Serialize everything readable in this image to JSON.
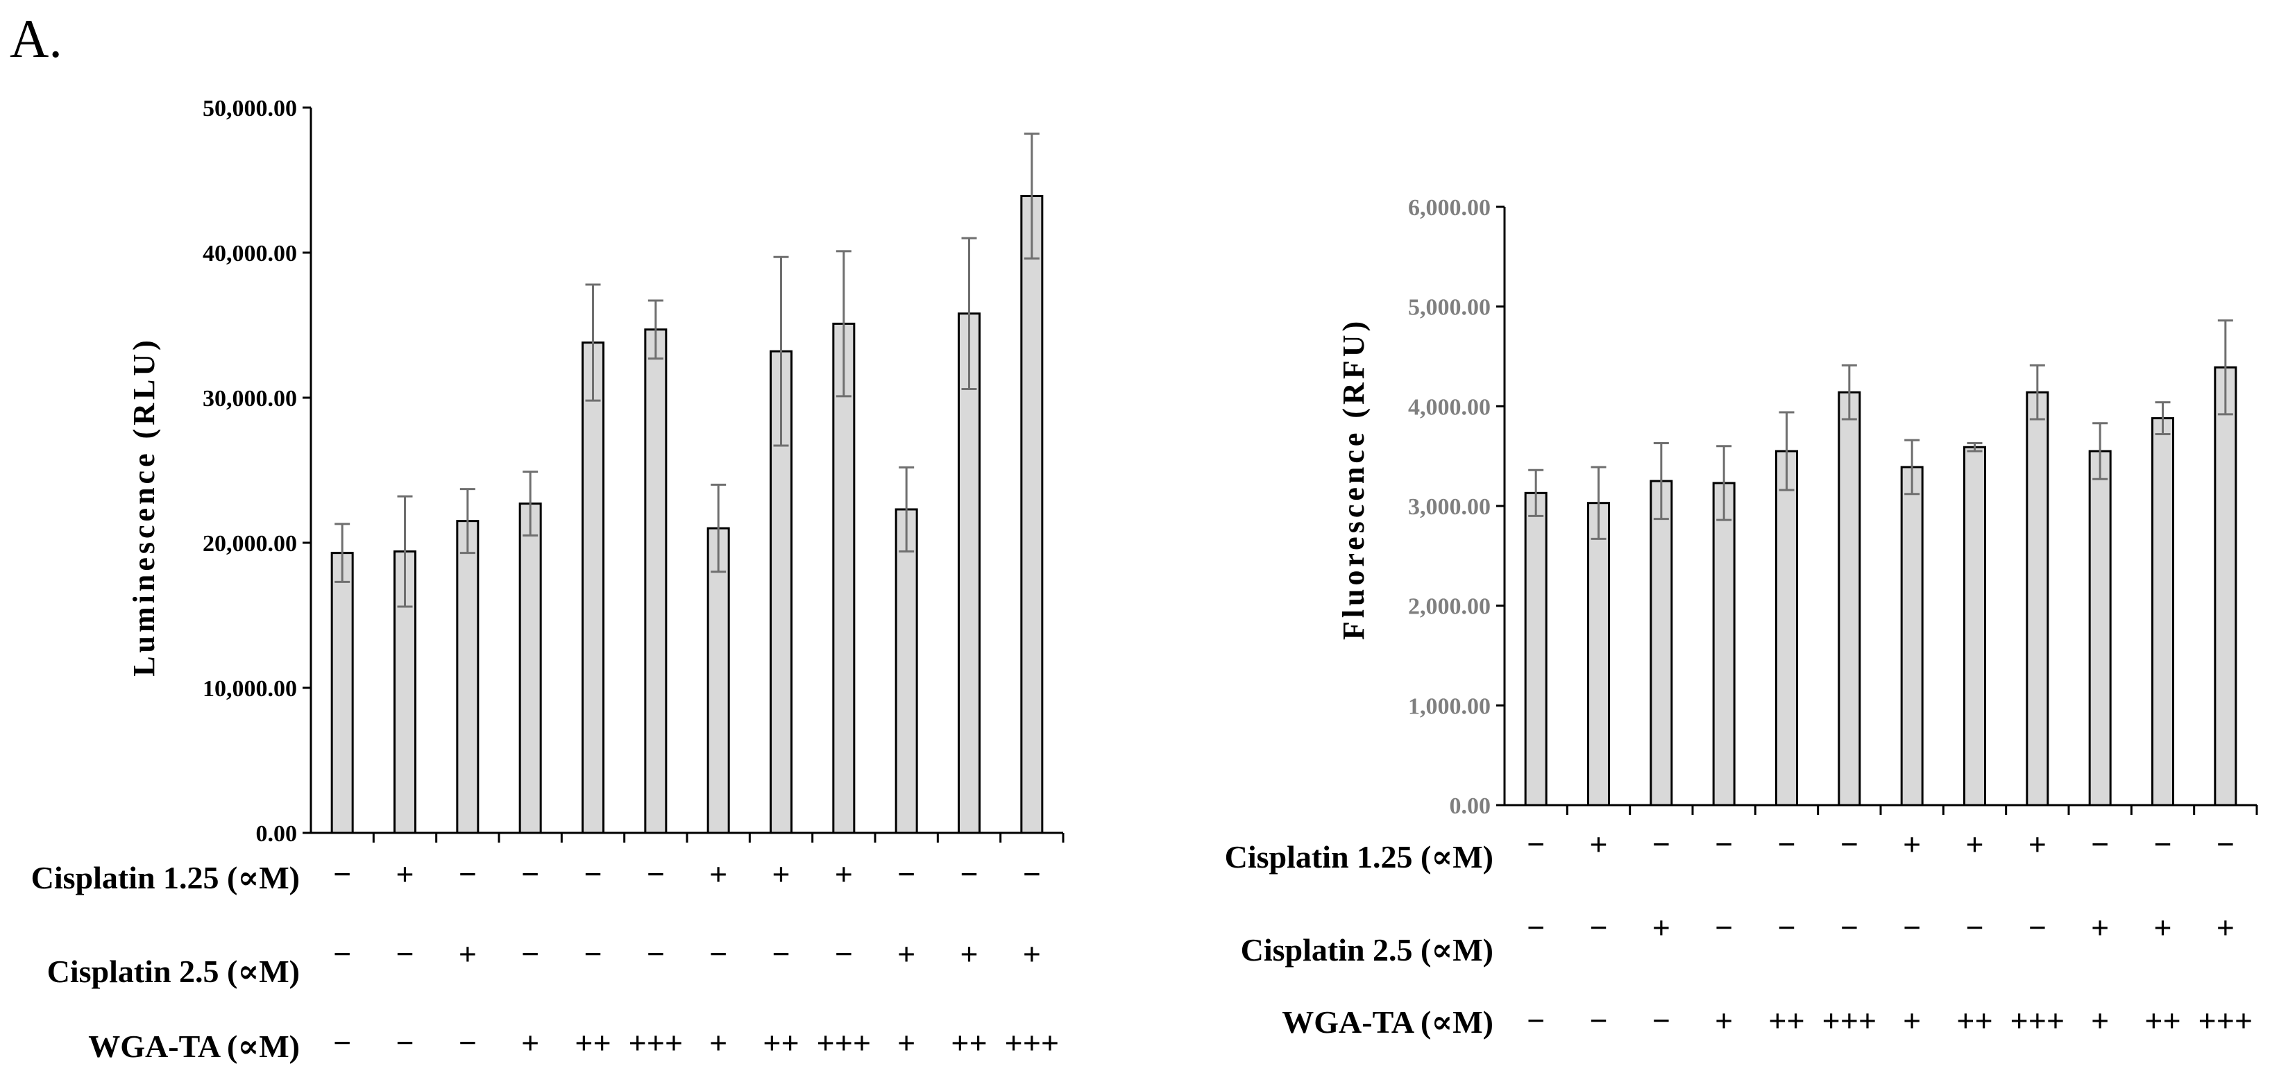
{
  "panel_label": "A.",
  "chart_data": [
    {
      "type": "bar",
      "ylabel": "Luminescence (RLU)",
      "ylim": [
        0,
        50000
      ],
      "yticks": [
        "0.00",
        "10,000.00",
        "20,000.00",
        "30,000.00",
        "40,000.00",
        "50,000.00"
      ],
      "values": [
        19300,
        19400,
        21500,
        22700,
        33800,
        34700,
        21000,
        33200,
        35100,
        22300,
        35800,
        43900
      ],
      "errors": [
        2000,
        3800,
        2200,
        2200,
        4000,
        2000,
        3000,
        6500,
        5000,
        2900,
        5200,
        4300
      ],
      "row_labels": [
        "Cisplatin 1.25 (∝M)",
        "Cisplatin 2.5 (∝M)",
        "WGA-TA (∝M)"
      ],
      "conditions": {
        "cisplatin_1_25": [
          "−",
          "+",
          "−",
          "−",
          "−",
          "−",
          "+",
          "+",
          "+",
          "−",
          "−",
          "−"
        ],
        "cisplatin_2_5": [
          "−",
          "−",
          "+",
          "−",
          "−",
          "−",
          "−",
          "−",
          "−",
          "+",
          "+",
          "+"
        ],
        "wga_ta": [
          "−",
          "−",
          "−",
          "+",
          "++",
          "+++",
          "+",
          "++",
          "+++",
          "+",
          "++",
          "+++"
        ]
      }
    },
    {
      "type": "bar",
      "ylabel": "Fluorescence (RFU)",
      "ylim": [
        0,
        6000
      ],
      "yticks": [
        "0.00",
        "1,000.00",
        "2,000.00",
        "3,000.00",
        "4,000.00",
        "5,000.00",
        "6,000.00"
      ],
      "values": [
        3130,
        3030,
        3250,
        3230,
        3550,
        4140,
        3390,
        3590,
        4140,
        3550,
        3880,
        4390
      ],
      "errors": [
        230,
        360,
        380,
        370,
        390,
        270,
        270,
        40,
        270,
        280,
        160,
        470
      ],
      "row_labels": [
        "Cisplatin 1.25 (∝M)",
        "Cisplatin 2.5 (∝M)",
        "WGA-TA (∝M)"
      ],
      "conditions": {
        "cisplatin_1_25": [
          "−",
          "+",
          "−",
          "−",
          "−",
          "−",
          "+",
          "+",
          "+",
          "−",
          "−",
          "−"
        ],
        "cisplatin_2_5": [
          "−",
          "−",
          "+",
          "−",
          "−",
          "−",
          "−",
          "−",
          "−",
          "+",
          "+",
          "+"
        ],
        "wga_ta": [
          "−",
          "−",
          "−",
          "+",
          "++",
          "+++",
          "+",
          "++",
          "+++",
          "+",
          "++",
          "+++"
        ]
      }
    }
  ]
}
